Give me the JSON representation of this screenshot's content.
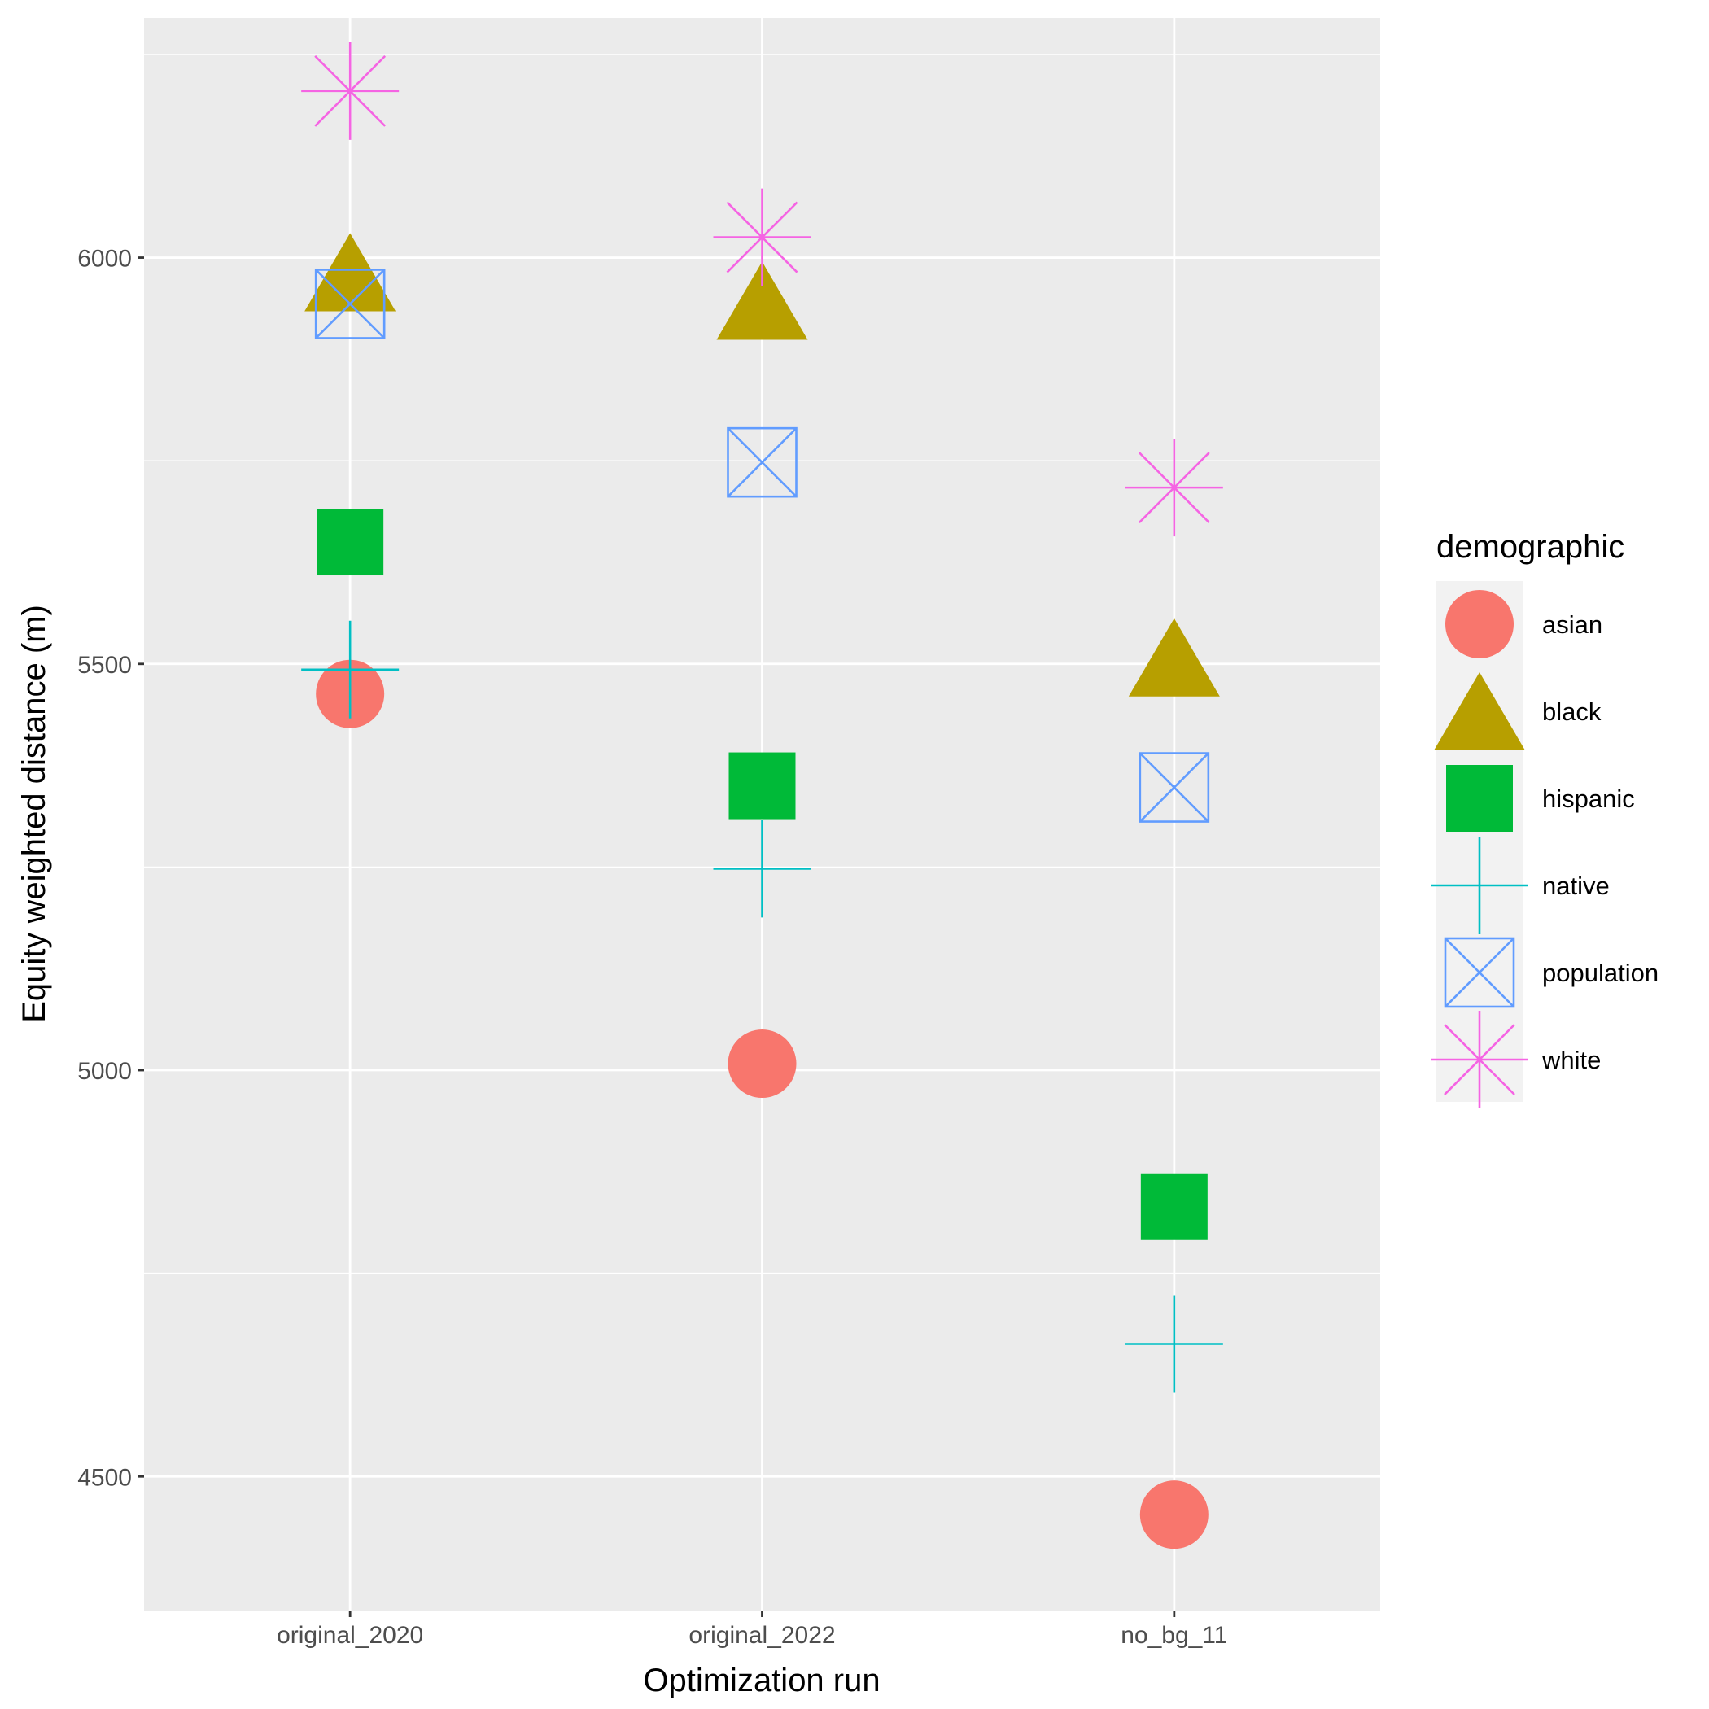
{
  "chart_data": {
    "type": "scatter",
    "title": "",
    "xlabel": "Optimization run",
    "ylabel": "Equity weighted distance (m)",
    "categories": [
      "original_2020",
      "original_2022",
      "no_bg_11"
    ],
    "ylim": [
      4335,
      6295
    ],
    "yticks": [
      4500,
      5000,
      5500,
      6000
    ],
    "grid": true,
    "legend": {
      "title": "demographic",
      "position": "right"
    },
    "series": [
      {
        "name": "asian",
        "shape": "circle",
        "color": "#F8766D",
        "values": [
          5463,
          5008,
          4453
        ]
      },
      {
        "name": "black",
        "shape": "triangle",
        "color": "#B79F00",
        "values": [
          5982,
          5947,
          5508
        ]
      },
      {
        "name": "hispanic",
        "shape": "square",
        "color": "#00BA38",
        "values": [
          5650,
          5350,
          4832
        ]
      },
      {
        "name": "native",
        "shape": "plus",
        "color": "#00BFC4",
        "values": [
          5493,
          5248,
          4663
        ]
      },
      {
        "name": "population",
        "shape": "boxcross",
        "color": "#619CFF",
        "values": [
          5943,
          5748,
          5348
        ]
      },
      {
        "name": "white",
        "shape": "asterisk",
        "color": "#F564E3",
        "values": [
          6205,
          6025,
          5717
        ]
      }
    ]
  }
}
